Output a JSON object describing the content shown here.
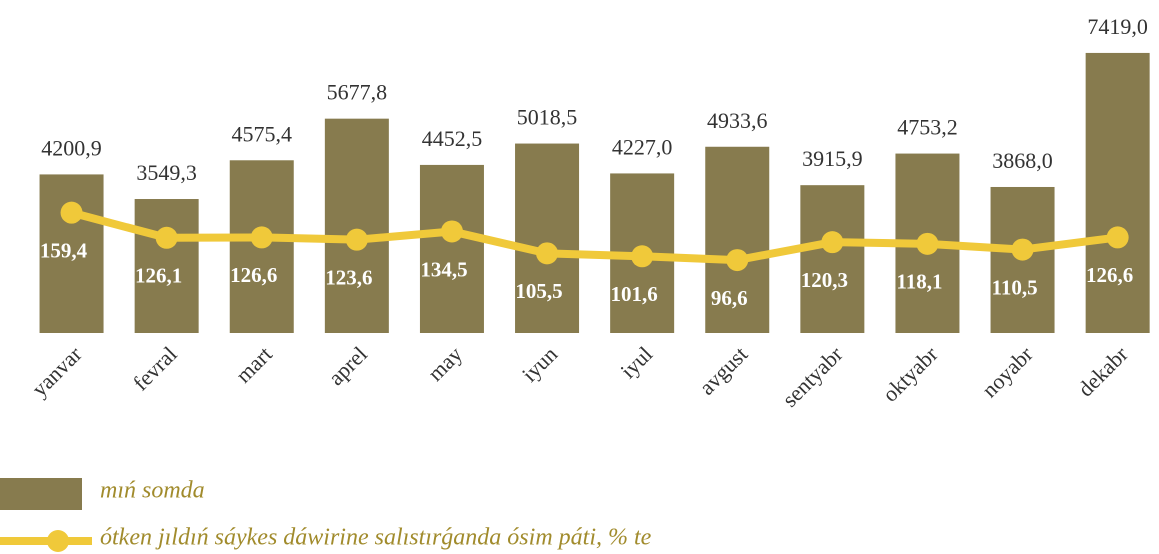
{
  "chart_data": {
    "type": "bar",
    "categories": [
      "yanvar",
      "fevral",
      "mart",
      "aprel",
      "may",
      "iyun",
      "iyul",
      "avgust",
      "sentyabr",
      "oktyabr",
      "noyabr",
      "dekabr"
    ],
    "series": [
      {
        "name": "mıń somda",
        "type": "bar",
        "color": "#877b4e",
        "values": [
          4200.9,
          3549.3,
          4575.4,
          5677.8,
          4452.5,
          5018.5,
          4227.0,
          4933.6,
          3915.9,
          4753.2,
          3868.0,
          7419.0
        ],
        "value_labels": [
          "4200,9",
          "3549,3",
          "4575,4",
          "5677,8",
          "4452,5",
          "5018,5",
          "4227,0",
          "4933,6",
          "3915,9",
          "4753,2",
          "3868,0",
          "7419,0"
        ]
      },
      {
        "name": "ótken jıldıń sáykes dáwirine salıstırǵanda ósim páti, % te",
        "type": "line",
        "axis": "y2",
        "color": "#f0c93a",
        "values": [
          159.4,
          126.1,
          126.6,
          123.6,
          134.5,
          105.5,
          101.6,
          96.6,
          120.3,
          118.1,
          110.5,
          126.6
        ],
        "value_labels": [
          "159,4",
          "126,1",
          "126,6",
          "123,6",
          "134,5",
          "105,5",
          "101,6",
          "96,6",
          "120,3",
          "118,1",
          "110,5",
          "126,6"
        ]
      }
    ],
    "ylim": [
      0,
      8000
    ],
    "y2lim": [
      0,
      400
    ],
    "legend": "bottom-left"
  }
}
